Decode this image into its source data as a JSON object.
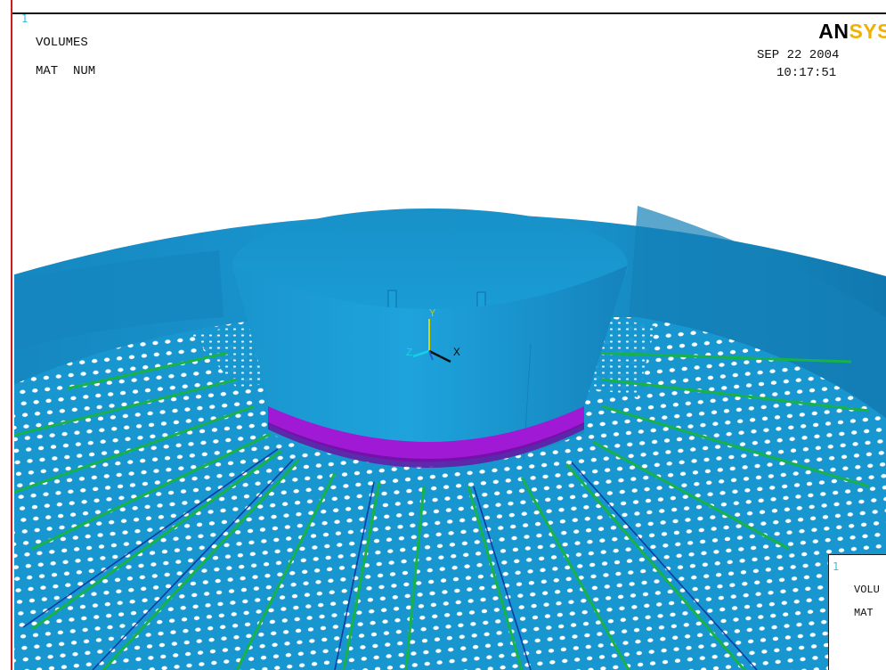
{
  "window": {
    "number": "1"
  },
  "header": {
    "line1": "VOLUMES",
    "line2": "MAT  NUM"
  },
  "logo": {
    "part1": "AN",
    "part2": "SYS"
  },
  "stamp": {
    "date": "SEP 22 2004",
    "time": "10:17:51"
  },
  "triad": {
    "x_label": "X",
    "y_label": "Y",
    "z_label": "Z"
  },
  "inset": {
    "number": "1",
    "line1": "VOLU",
    "line2": "MAT"
  },
  "colors": {
    "mesh_blue": "#1796cf",
    "shade_dark": "#0b6fa3",
    "ring_magenta": "#a01ad6",
    "rib_green": "#17b24a",
    "hole_white": "#ffffff",
    "frame_red": "#d21a1a",
    "logo_yellow": "#f2b100"
  },
  "icons": [
    "axis-triad-icon",
    "ansys-logo"
  ]
}
